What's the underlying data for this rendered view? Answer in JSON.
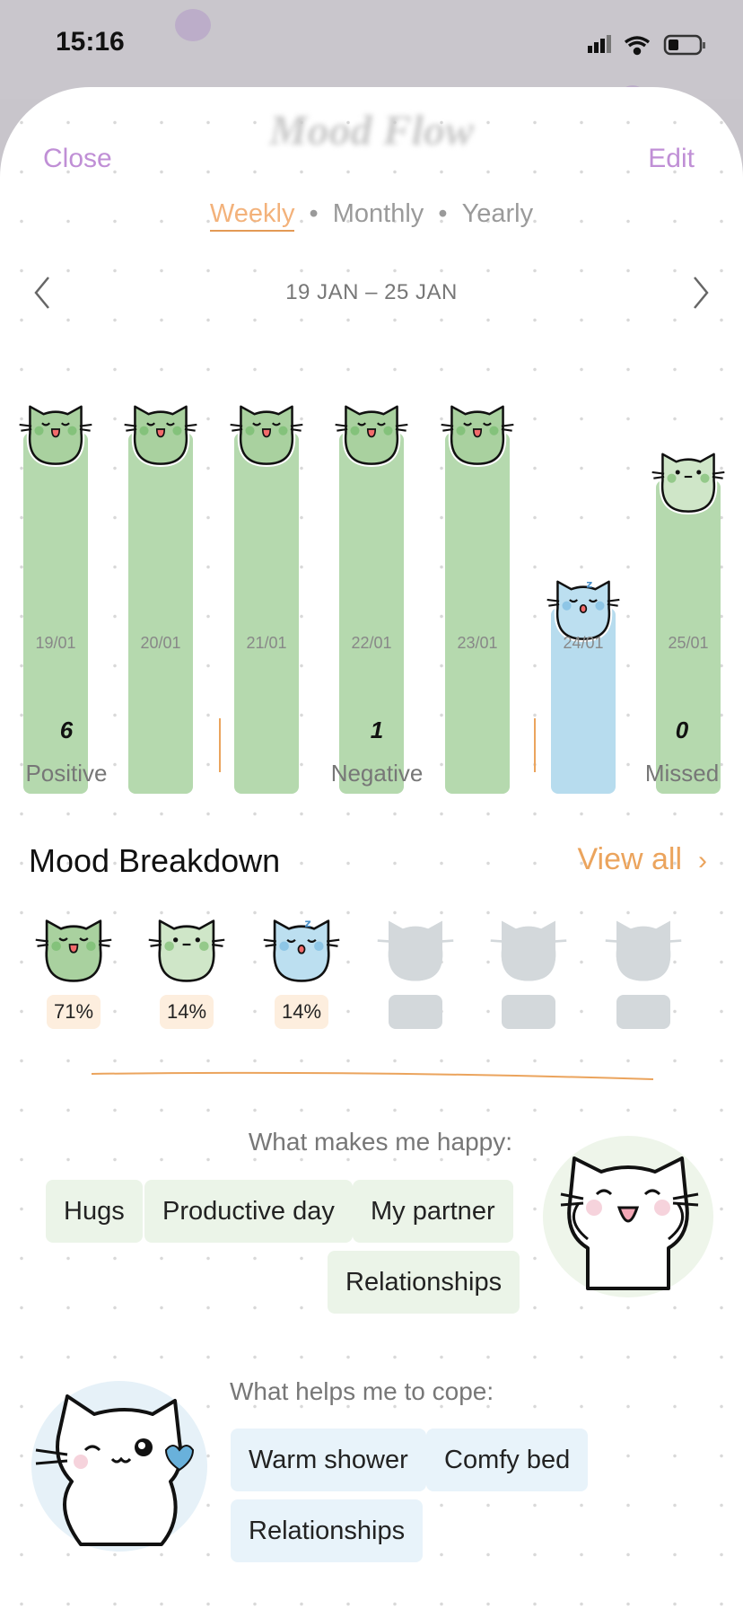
{
  "status_bar": {
    "time": "15:16",
    "icons": [
      "signal-icon",
      "wifi-icon",
      "battery-icon"
    ]
  },
  "header": {
    "title": "Mood Flow",
    "close_label": "Close",
    "edit_label": "Edit"
  },
  "tabs": [
    {
      "label": "Weekly",
      "active": true
    },
    {
      "label": "Monthly",
      "active": false
    },
    {
      "label": "Yearly",
      "active": false
    }
  ],
  "tab_separator": "•",
  "date_range": "19 JAN – 25 JAN",
  "chart_data": {
    "type": "bar",
    "categories": [
      "19/01",
      "20/01",
      "21/01",
      "22/01",
      "23/01",
      "24/01",
      "25/01"
    ],
    "mood_level": [
      5,
      5,
      5,
      5,
      5,
      2,
      4
    ],
    "moods": [
      "happy",
      "happy",
      "happy",
      "happy",
      "happy",
      "sleepy",
      "calm"
    ],
    "colors": [
      "#b5d9ae",
      "#b5d9ae",
      "#b5d9ae",
      "#b5d9ae",
      "#b5d9ae",
      "#b7dcee",
      "#b5d9ae"
    ]
  },
  "stats": [
    {
      "value": "6",
      "label": "Positive"
    },
    {
      "value": "1",
      "label": "Negative"
    },
    {
      "value": "0",
      "label": "Missed"
    }
  ],
  "breakdown": {
    "title": "Mood Breakdown",
    "view_all": "View all",
    "items": [
      {
        "mood": "happy",
        "percent": "71%"
      },
      {
        "mood": "calm",
        "percent": "14%"
      },
      {
        "mood": "sleepy",
        "percent": "14%"
      },
      {
        "mood": "empty",
        "percent": ""
      },
      {
        "mood": "empty",
        "percent": ""
      },
      {
        "mood": "empty",
        "percent": ""
      }
    ]
  },
  "happy": {
    "title": "What makes me happy:",
    "chips": [
      "Hugs",
      "Productive day",
      "My partner",
      "Relationships"
    ]
  },
  "cope": {
    "title": "What helps me to cope:",
    "chips": [
      "Warm shower",
      "Comfy bed",
      "Relationships"
    ]
  },
  "accent_colors": {
    "purple": "#c08fd6",
    "orange": "#eba45d",
    "green": "#b5d9ae",
    "blue": "#b7dcee"
  }
}
